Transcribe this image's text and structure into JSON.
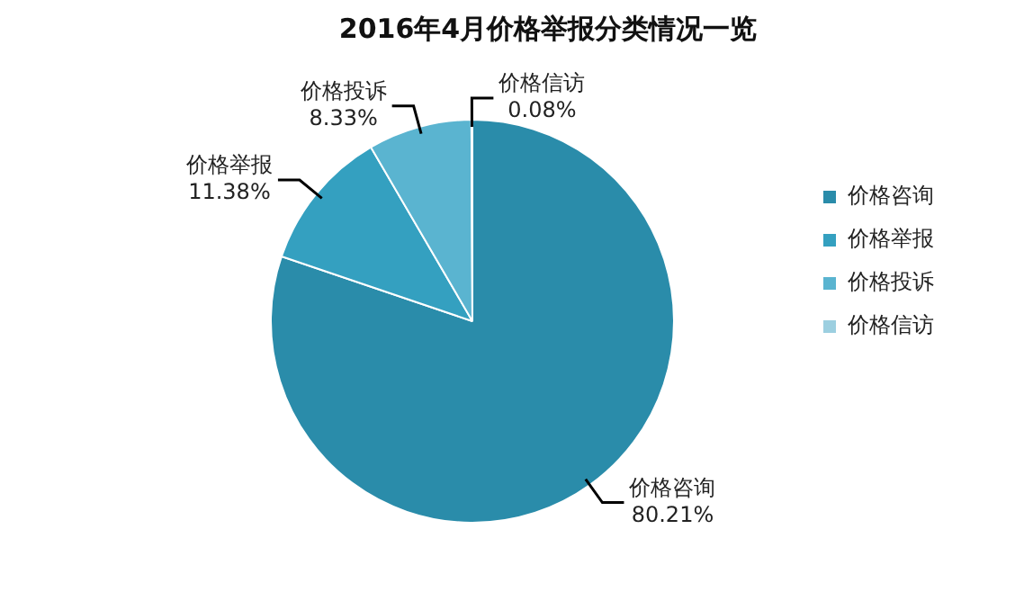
{
  "chart_data": {
    "type": "pie",
    "title": "2016年4月价格举报分类情况一览",
    "categories": [
      "价格咨询",
      "价格举报",
      "价格投诉",
      "价格信访"
    ],
    "values": [
      80.21,
      11.38,
      8.33,
      0.08
    ],
    "value_labels": [
      "80.21%",
      "11.38%",
      "8.33%",
      "0.08%"
    ],
    "colors": [
      "#2a8caa",
      "#34a0c0",
      "#5ab4d0",
      "#9ccfe0"
    ],
    "legend": "right"
  }
}
